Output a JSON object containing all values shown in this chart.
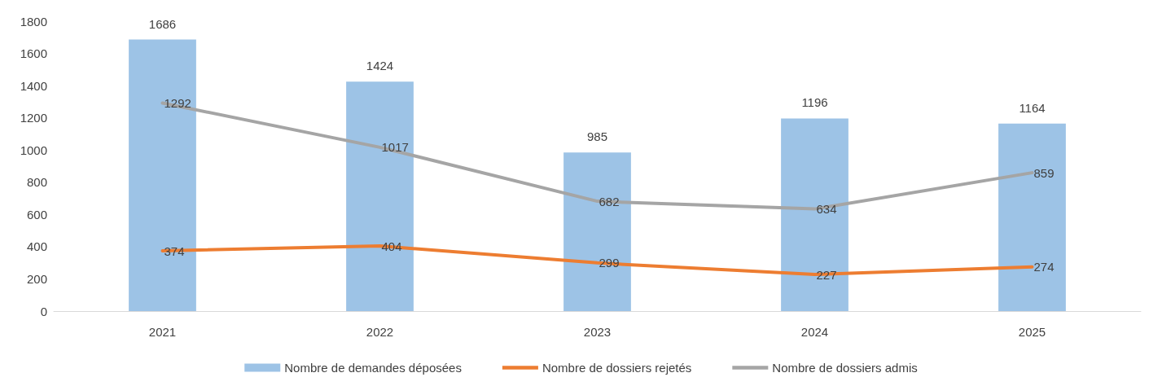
{
  "chart_data": {
    "type": "bar",
    "categories": [
      "2021",
      "2022",
      "2023",
      "2024",
      "2025"
    ],
    "series": [
      {
        "name": "Nombre de demandes déposées",
        "color": "#9dc3e6",
        "values": [
          1686,
          1424,
          985,
          1196,
          1164
        ]
      },
      {
        "name": "Nombre de dossiers rejetés",
        "type": "line",
        "color": "#ed7d31",
        "values": [
          374,
          404,
          299,
          227,
          274
        ]
      },
      {
        "name": "Nombre de dossiers admis",
        "type": "line",
        "color": "#a5a5a5",
        "values": [
          1292,
          1017,
          682,
          634,
          859
        ]
      }
    ],
    "ylim": [
      0,
      1800
    ],
    "yticks": [
      0,
      200,
      400,
      600,
      800,
      1000,
      1200,
      1400,
      1600,
      1800
    ],
    "grid": false,
    "legend": "bottom",
    "data_labels": true,
    "marker": "none",
    "line_style": "solid"
  }
}
